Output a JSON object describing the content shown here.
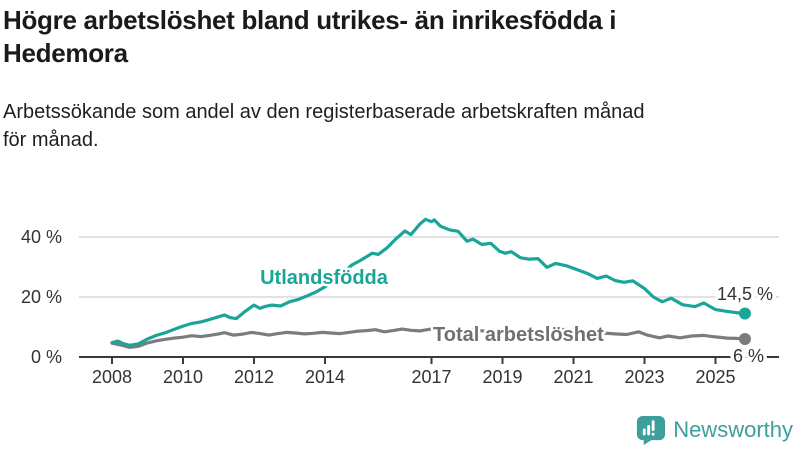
{
  "header": {
    "title": "Högre arbetslöshet bland utrikes- än inrikesfödda i\nHedemora",
    "subtitle": "Arbetssökande som andel av den registerbaserade arbetskraften månad\nför månad."
  },
  "footer": {
    "brand": "Newsworthy",
    "logo_icon": "bar-chart-speech-bubble-icon"
  },
  "colors": {
    "series_utlandsfodda": "#1aa598",
    "series_total": "#7b7c7f",
    "series_total_label": "#6f7073",
    "grid": "#d9d9d9",
    "axis": "#3a3a3a",
    "tick_text": "#333333",
    "logo": "#3d9f9b"
  },
  "chart_data": {
    "type": "line",
    "title": "",
    "xlabel": "",
    "ylabel": "",
    "grid": "horizontal",
    "legend_position": "inline-labels",
    "x_axis": {
      "range": [
        2007.1,
        2026.4
      ],
      "ticks": [
        2008,
        2010,
        2012,
        2014,
        2017,
        2019,
        2021,
        2023,
        2025
      ],
      "tick_labels": [
        "2008",
        "2010",
        "2012",
        "2014",
        "2017",
        "2019",
        "2021",
        "2023",
        "2025"
      ]
    },
    "y_axis": {
      "range": [
        0,
        50
      ],
      "ticks": [
        0,
        20,
        40
      ],
      "tick_labels": [
        "0 %",
        "20 %",
        "40 %"
      ],
      "unit": "%"
    },
    "series": [
      {
        "name": "Utlandsfödda",
        "end_label": "14,5 %",
        "end_value": 14.5,
        "points": [
          [
            2008.0,
            4.8
          ],
          [
            2008.17,
            5.3
          ],
          [
            2008.33,
            4.4
          ],
          [
            2008.5,
            3.9
          ],
          [
            2008.75,
            4.4
          ],
          [
            2009.0,
            6.0
          ],
          [
            2009.25,
            7.2
          ],
          [
            2009.5,
            8.1
          ],
          [
            2009.75,
            9.2
          ],
          [
            2010.0,
            10.3
          ],
          [
            2010.25,
            11.2
          ],
          [
            2010.5,
            11.7
          ],
          [
            2010.75,
            12.5
          ],
          [
            2011.0,
            13.4
          ],
          [
            2011.17,
            14.0
          ],
          [
            2011.33,
            13.1
          ],
          [
            2011.5,
            12.8
          ],
          [
            2011.75,
            15.2
          ],
          [
            2012.0,
            17.3
          ],
          [
            2012.17,
            16.2
          ],
          [
            2012.33,
            16.9
          ],
          [
            2012.5,
            17.3
          ],
          [
            2012.75,
            17.0
          ],
          [
            2013.0,
            18.4
          ],
          [
            2013.25,
            19.2
          ],
          [
            2013.5,
            20.4
          ],
          [
            2013.75,
            21.7
          ],
          [
            2014.0,
            23.4
          ],
          [
            2014.25,
            25.4
          ],
          [
            2014.5,
            27.8
          ],
          [
            2014.75,
            30.6
          ],
          [
            2015.0,
            32.2
          ],
          [
            2015.17,
            33.4
          ],
          [
            2015.33,
            34.6
          ],
          [
            2015.5,
            34.2
          ],
          [
            2015.75,
            36.4
          ],
          [
            2016.0,
            39.4
          ],
          [
            2016.25,
            42.0
          ],
          [
            2016.42,
            40.8
          ],
          [
            2016.67,
            44.3
          ],
          [
            2016.83,
            45.9
          ],
          [
            2017.0,
            45.1
          ],
          [
            2017.08,
            45.7
          ],
          [
            2017.25,
            43.6
          ],
          [
            2017.5,
            42.4
          ],
          [
            2017.75,
            41.9
          ],
          [
            2018.0,
            38.6
          ],
          [
            2018.17,
            39.3
          ],
          [
            2018.42,
            37.5
          ],
          [
            2018.67,
            37.9
          ],
          [
            2018.92,
            35.2
          ],
          [
            2019.08,
            34.6
          ],
          [
            2019.25,
            35.1
          ],
          [
            2019.5,
            33.1
          ],
          [
            2019.75,
            32.6
          ],
          [
            2020.0,
            32.8
          ],
          [
            2020.25,
            29.9
          ],
          [
            2020.5,
            31.2
          ],
          [
            2020.83,
            30.3
          ],
          [
            2021.08,
            29.2
          ],
          [
            2021.42,
            27.7
          ],
          [
            2021.67,
            26.2
          ],
          [
            2021.92,
            27.0
          ],
          [
            2022.17,
            25.5
          ],
          [
            2022.42,
            24.9
          ],
          [
            2022.67,
            25.4
          ],
          [
            2023.0,
            22.8
          ],
          [
            2023.25,
            20.0
          ],
          [
            2023.5,
            18.4
          ],
          [
            2023.75,
            19.6
          ],
          [
            2024.08,
            17.4
          ],
          [
            2024.42,
            16.8
          ],
          [
            2024.67,
            18.0
          ],
          [
            2025.0,
            15.8
          ],
          [
            2025.33,
            15.2
          ],
          [
            2025.58,
            14.8
          ],
          [
            2025.83,
            14.5
          ]
        ]
      },
      {
        "name": "Total arbetslöshet",
        "end_label": "6 %",
        "end_value": 6,
        "points": [
          [
            2008.0,
            4.6
          ],
          [
            2008.25,
            4.0
          ],
          [
            2008.5,
            3.2
          ],
          [
            2008.75,
            3.6
          ],
          [
            2009.0,
            4.7
          ],
          [
            2009.25,
            5.4
          ],
          [
            2009.5,
            5.9
          ],
          [
            2009.75,
            6.3
          ],
          [
            2010.0,
            6.6
          ],
          [
            2010.25,
            7.1
          ],
          [
            2010.5,
            6.8
          ],
          [
            2010.75,
            7.2
          ],
          [
            2011.0,
            7.7
          ],
          [
            2011.17,
            8.1
          ],
          [
            2011.42,
            7.3
          ],
          [
            2011.67,
            7.6
          ],
          [
            2011.92,
            8.2
          ],
          [
            2012.17,
            7.8
          ],
          [
            2012.42,
            7.3
          ],
          [
            2012.67,
            7.8
          ],
          [
            2012.92,
            8.2
          ],
          [
            2013.17,
            8.0
          ],
          [
            2013.42,
            7.7
          ],
          [
            2013.67,
            7.9
          ],
          [
            2013.92,
            8.2
          ],
          [
            2014.17,
            8.0
          ],
          [
            2014.42,
            7.8
          ],
          [
            2014.67,
            8.2
          ],
          [
            2014.92,
            8.6
          ],
          [
            2015.17,
            8.8
          ],
          [
            2015.42,
            9.1
          ],
          [
            2015.67,
            8.4
          ],
          [
            2015.92,
            8.8
          ],
          [
            2016.17,
            9.3
          ],
          [
            2016.42,
            8.9
          ],
          [
            2016.67,
            8.7
          ],
          [
            2016.92,
            9.2
          ],
          [
            2017.17,
            9.5
          ],
          [
            2017.5,
            9.0
          ],
          [
            2017.83,
            8.8
          ],
          [
            2018.17,
            9.1
          ],
          [
            2018.5,
            8.6
          ],
          [
            2018.83,
            8.4
          ],
          [
            2019.17,
            8.6
          ],
          [
            2019.5,
            8.2
          ],
          [
            2019.83,
            8.1
          ],
          [
            2020.17,
            8.5
          ],
          [
            2020.5,
            9.0
          ],
          [
            2020.83,
            9.2
          ],
          [
            2021.17,
            8.8
          ],
          [
            2021.5,
            8.3
          ],
          [
            2021.83,
            8.0
          ],
          [
            2022.17,
            7.7
          ],
          [
            2022.5,
            7.5
          ],
          [
            2022.83,
            8.4
          ],
          [
            2023.08,
            7.3
          ],
          [
            2023.42,
            6.4
          ],
          [
            2023.67,
            7.0
          ],
          [
            2024.0,
            6.4
          ],
          [
            2024.33,
            7.0
          ],
          [
            2024.67,
            7.2
          ],
          [
            2025.0,
            6.7
          ],
          [
            2025.33,
            6.3
          ],
          [
            2025.58,
            6.2
          ],
          [
            2025.83,
            6.0
          ]
        ]
      }
    ]
  }
}
